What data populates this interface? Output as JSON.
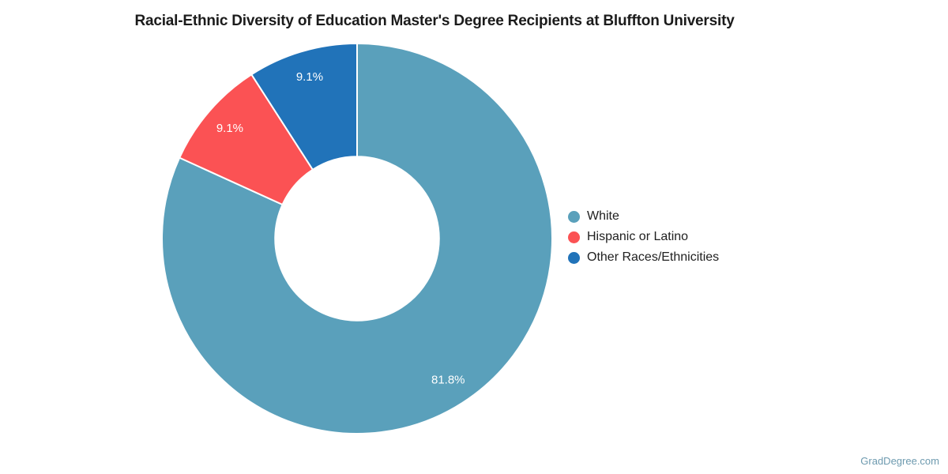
{
  "page": {
    "background": "#ffffff"
  },
  "title": "Racial-Ethnic Diversity of Education Master's Degree Recipients at Bluffton University",
  "watermark": "GradDegree.com",
  "chart_data": {
    "type": "pie",
    "subtype": "donut",
    "title": "Racial-Ethnic Diversity of Education Master's Degree Recipients at Bluffton University",
    "start_angle_deg": 0,
    "direction": "clockwise",
    "inner_radius_ratio": 0.42,
    "legend_position": "right",
    "slice_label_color": "#ffffff",
    "slice_border_color": "#ffffff",
    "slices": [
      {
        "label": "White",
        "value": 81.8,
        "display": "81.8%",
        "color": "#5aa0bb"
      },
      {
        "label": "Hispanic or Latino",
        "value": 9.1,
        "display": "9.1%",
        "color": "#fb5254"
      },
      {
        "label": "Other Races/Ethnicities",
        "value": 9.1,
        "display": "9.1%",
        "color": "#2173b9"
      }
    ]
  }
}
